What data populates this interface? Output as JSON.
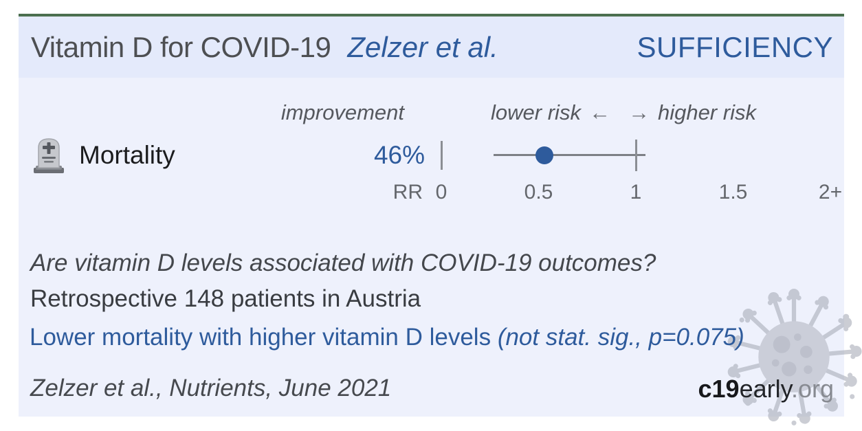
{
  "colors": {
    "accent_green": "#4b6f4f",
    "header_bg": "#e4eafb",
    "body_bg": "#eef1fc",
    "link_blue": "#2e5b9c",
    "plot_gray": "#7d8086"
  },
  "header": {
    "title": "Vitamin D for COVID-19",
    "authors": "Zelzer et al.",
    "badge": "SUFFICIENCY"
  },
  "plot": {
    "improvement_label": "improvement",
    "lower_risk_label": "lower risk",
    "left_arrow": "←",
    "right_arrow": "→",
    "higher_risk_label": "higher risk",
    "outcome": {
      "icon": "tombstone-icon",
      "label": "Mortality",
      "improvement": "46%"
    },
    "axis": {
      "label": "RR"
    }
  },
  "summary": {
    "question": "Are vitamin D levels associated with COVID-19 outcomes?",
    "design": "Retrospective 148 patients in Austria",
    "finding": "Lower mortality with higher vitamin D levels",
    "significance": "(not stat. sig., p=0.075)"
  },
  "footer": {
    "citation": "Zelzer et al., Nutrients, June 2021",
    "brand_bold": "c19",
    "brand_regular": "early",
    "brand_suffix": ".org"
  },
  "chart_data": {
    "type": "scatter",
    "subtype": "forest-plot",
    "title": "Vitamin D for COVID-19 — Zelzer et al. — SUFFICIENCY",
    "xlabel": "RR",
    "xlim": [
      0,
      2.16
    ],
    "x_ticks": [
      0,
      0.5,
      1,
      1.5,
      2
    ],
    "x_tick_labels": [
      "0",
      "0.5",
      "1",
      "1.5",
      "2+"
    ],
    "reference_line_x": 1,
    "legend": [
      "improvement",
      "lower risk",
      "higher risk"
    ],
    "series": [
      {
        "name": "Mortality",
        "rr": 0.53,
        "ci_lower": 0.27,
        "ci_upper": 1.05,
        "improvement_pct": 46,
        "p_value": 0.075,
        "significant": false
      }
    ]
  }
}
